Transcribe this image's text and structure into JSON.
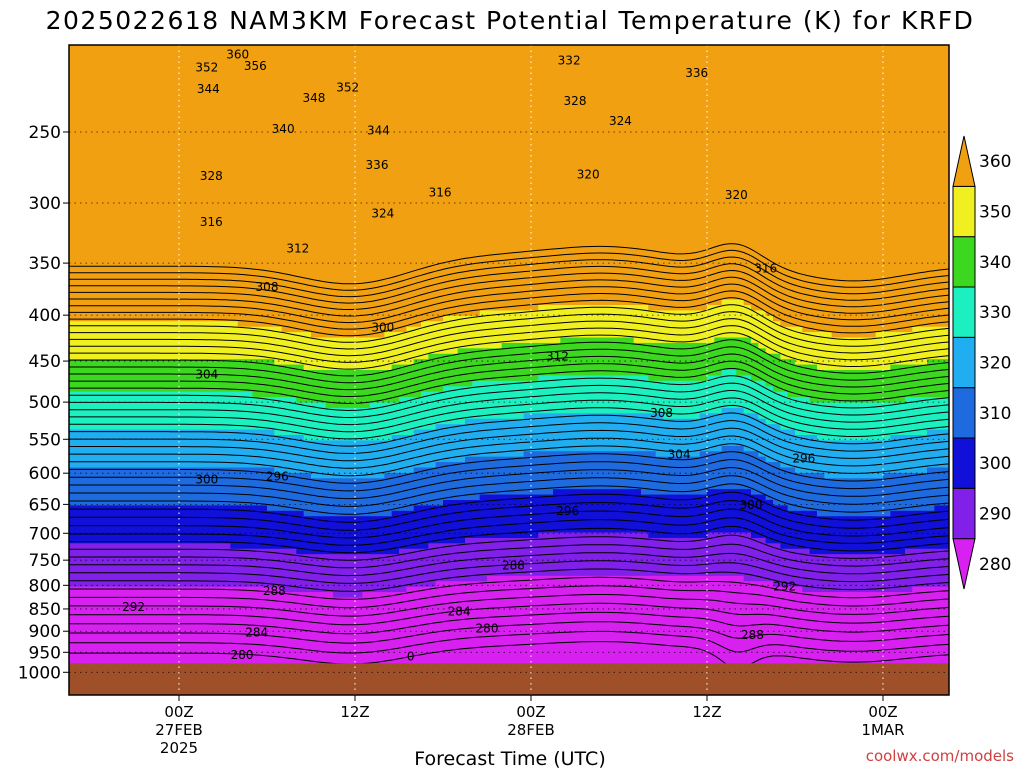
{
  "title": "2025022618 NAM3KM Forecast Potential Temperature (K) for KRFD",
  "credit": "coolwx.com/models",
  "chart_data": {
    "type": "heatmap",
    "title": "2025022618 NAM3KM Forecast Potential Temperature (K) for KRFD",
    "xlabel": "Forecast Time (UTC)",
    "ylabel": "",
    "y_scale": "log",
    "y_inverted": true,
    "y_ticks": [
      250,
      300,
      350,
      400,
      450,
      500,
      550,
      600,
      650,
      700,
      750,
      800,
      850,
      900,
      950,
      1000
    ],
    "x_ticks": [
      {
        "hour": 6,
        "line1": "00Z",
        "line2": "27FEB",
        "line3": "2025"
      },
      {
        "hour": 18,
        "line1": "12Z",
        "line2": "",
        "line3": ""
      },
      {
        "hour": 30,
        "line1": "00Z",
        "line2": "28FEB",
        "line3": ""
      },
      {
        "hour": 42,
        "line1": "12Z",
        "line2": "",
        "line3": ""
      },
      {
        "hour": 54,
        "line1": "00Z",
        "line2": "1MAR",
        "line3": ""
      }
    ],
    "colorbar": {
      "levels": [
        280,
        290,
        300,
        310,
        320,
        330,
        340,
        350,
        360
      ],
      "colors": [
        "#d820f0",
        "#8020e8",
        "#1010d8",
        "#1e6be0",
        "#21aef0",
        "#1cf0c0",
        "#3cd820",
        "#f0f020",
        "#f0a010"
      ]
    },
    "contour_labels": [
      {
        "hour": 10.0,
        "p": 205,
        "text": "360"
      },
      {
        "hour": 7.9,
        "p": 212,
        "text": "352"
      },
      {
        "hour": 11.2,
        "p": 211,
        "text": "356"
      },
      {
        "hour": 8.0,
        "p": 224,
        "text": "344"
      },
      {
        "hour": 15.2,
        "p": 229,
        "text": "348"
      },
      {
        "hour": 17.5,
        "p": 223,
        "text": "352"
      },
      {
        "hour": 13.1,
        "p": 248,
        "text": "340"
      },
      {
        "hour": 19.6,
        "p": 249,
        "text": "344"
      },
      {
        "hour": 8.2,
        "p": 280,
        "text": "328"
      },
      {
        "hour": 19.5,
        "p": 272,
        "text": "336"
      },
      {
        "hour": 8.2,
        "p": 315,
        "text": "316"
      },
      {
        "hour": 19.9,
        "p": 308,
        "text": "324"
      },
      {
        "hour": 14.1,
        "p": 337,
        "text": "312"
      },
      {
        "hour": 23.8,
        "p": 292,
        "text": "316"
      },
      {
        "hour": 32.6,
        "p": 208,
        "text": "332"
      },
      {
        "hour": 33.0,
        "p": 231,
        "text": "328"
      },
      {
        "hour": 36.1,
        "p": 243,
        "text": "324"
      },
      {
        "hour": 33.9,
        "p": 279,
        "text": "320"
      },
      {
        "hour": 41.3,
        "p": 215,
        "text": "336"
      },
      {
        "hour": 44.0,
        "p": 294,
        "text": "320"
      },
      {
        "hour": 46.0,
        "p": 355,
        "text": "316"
      },
      {
        "hour": 12.0,
        "p": 372,
        "text": "308"
      },
      {
        "hour": 19.9,
        "p": 413,
        "text": "300"
      },
      {
        "hour": 7.9,
        "p": 466,
        "text": "304"
      },
      {
        "hour": 31.8,
        "p": 445,
        "text": "312"
      },
      {
        "hour": 38.9,
        "p": 514,
        "text": "308"
      },
      {
        "hour": 40.1,
        "p": 572,
        "text": "304"
      },
      {
        "hour": 7.9,
        "p": 610,
        "text": "300"
      },
      {
        "hour": 12.7,
        "p": 605,
        "text": "296"
      },
      {
        "hour": 48.6,
        "p": 578,
        "text": "296"
      },
      {
        "hour": 32.5,
        "p": 661,
        "text": "296"
      },
      {
        "hour": 45.0,
        "p": 651,
        "text": "300"
      },
      {
        "hour": 28.8,
        "p": 760,
        "text": "288"
      },
      {
        "hour": 12.5,
        "p": 812,
        "text": "288"
      },
      {
        "hour": 2.9,
        "p": 846,
        "text": "292"
      },
      {
        "hour": 25.1,
        "p": 856,
        "text": "284"
      },
      {
        "hour": 47.3,
        "p": 802,
        "text": "292"
      },
      {
        "hour": 11.3,
        "p": 903,
        "text": "284"
      },
      {
        "hour": 27.0,
        "p": 894,
        "text": "280"
      },
      {
        "hour": 45.1,
        "p": 909,
        "text": "288"
      },
      {
        "hour": 10.3,
        "p": 956,
        "text": "280"
      },
      {
        "hour": 21.8,
        "p": 960,
        "text": "0"
      }
    ]
  }
}
